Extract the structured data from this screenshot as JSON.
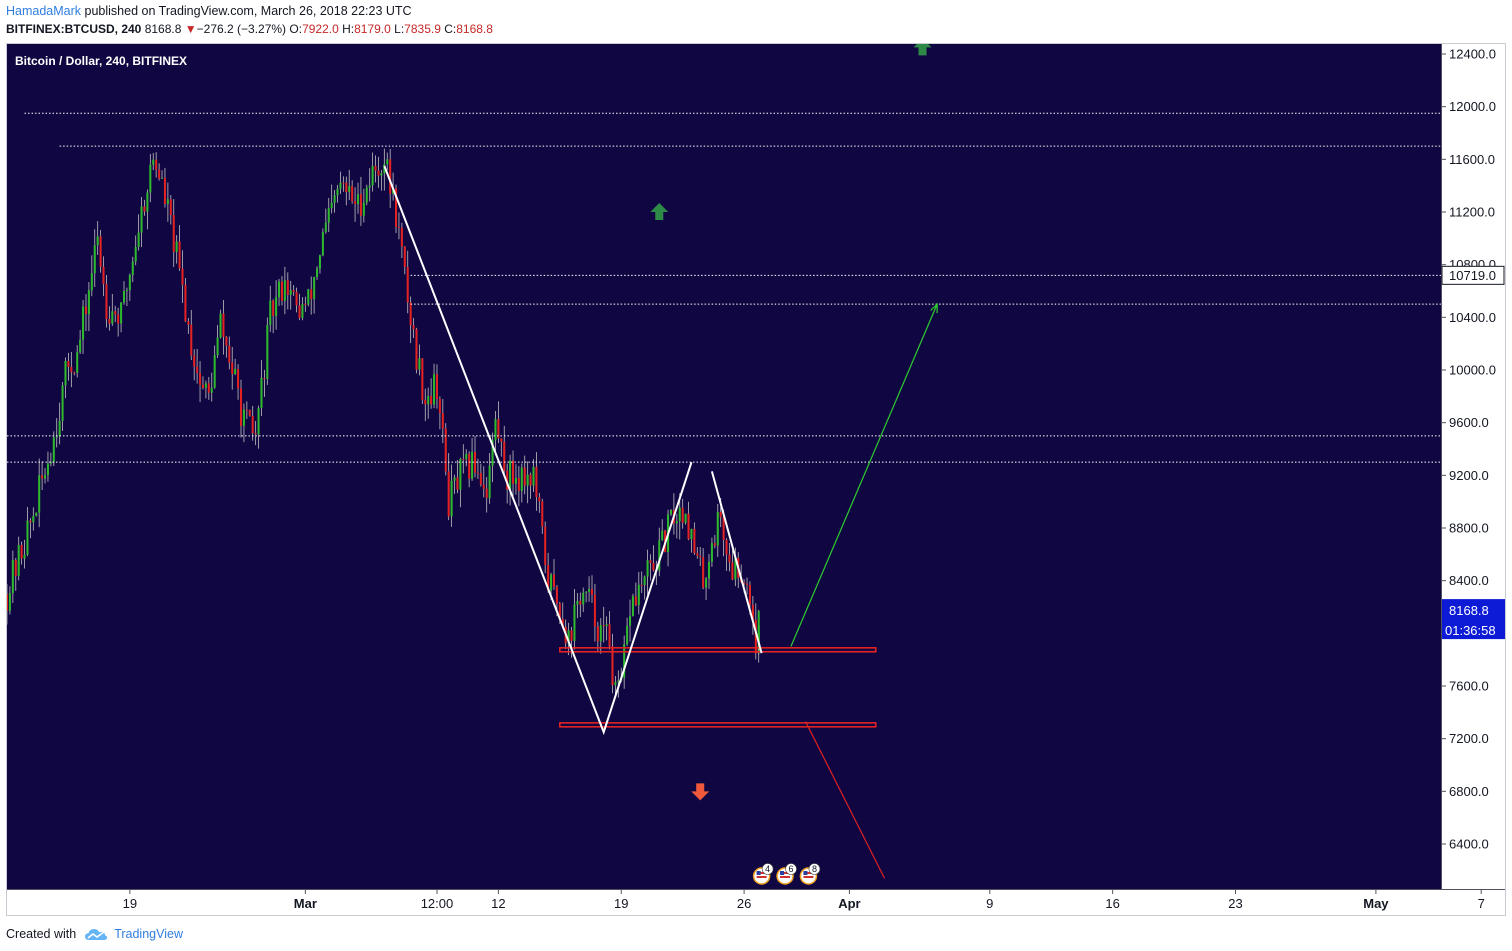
{
  "header": {
    "author": "HamadaMark",
    "published_text": "published on TradingView.com, March 26, 2018 22:23 UTC",
    "symbol": "BITFINEX:BTCUSD, 240",
    "last": "8168.8",
    "change": "−276.2 (−3.27%)",
    "o_label": "O:",
    "o": "7922.0",
    "h_label": "H:",
    "h": "8179.0",
    "l_label": "L:",
    "l": "7835.9",
    "c_label": "C:",
    "c": "8168.8"
  },
  "footer": {
    "created_with": "Created with",
    "brand": "TradingView"
  },
  "colors": {
    "chart_bg": "#100742",
    "up": "#2eb82e",
    "down": "#e32222",
    "wick": "#c0c0c0",
    "trend": "#ffffff",
    "up_arrow": "#2e8b47",
    "down_arrow": "#f0583b",
    "price_badge": "#0d1bd6"
  },
  "chart_data": {
    "type": "candlestick",
    "title": "Bitcoin / Dollar, 240, BITFINEX",
    "ylim": [
      6100,
      12500
    ],
    "y_ticks": [
      "12400.0",
      "12000.0",
      "11600.0",
      "11200.0",
      "10800.0",
      "10400.0",
      "10000.0",
      "9600.0",
      "9200.0",
      "8800.0",
      "8400.0",
      "7600.0",
      "7200.0",
      "6800.0",
      "6400.0"
    ],
    "y_tick_values": [
      12400,
      12000,
      11600,
      11200,
      10800,
      10400,
      10000,
      9600,
      9200,
      8800,
      8400,
      7600,
      7200,
      6800,
      6400
    ],
    "x_ticks": [
      {
        "label": "19",
        "date": "2018-02-19",
        "bold": false
      },
      {
        "label": "Mar",
        "date": "2018-03-01",
        "bold": true
      },
      {
        "label": "12:00",
        "date": "2018-03-08T12:00",
        "bold": false
      },
      {
        "label": "12",
        "date": "2018-03-12",
        "bold": false
      },
      {
        "label": "19",
        "date": "2018-03-19",
        "bold": false
      },
      {
        "label": "26",
        "date": "2018-03-26",
        "bold": false
      },
      {
        "label": "Apr",
        "date": "2018-04-01",
        "bold": true
      },
      {
        "label": "9",
        "date": "2018-04-09",
        "bold": false
      },
      {
        "label": "16",
        "date": "2018-04-16",
        "bold": false
      },
      {
        "label": "23",
        "date": "2018-04-23",
        "bold": false
      },
      {
        "label": "May",
        "date": "2018-05-01",
        "bold": true
      },
      {
        "label": "7",
        "date": "2018-05-07",
        "bold": false
      }
    ],
    "badges": {
      "marked_level": "10719.0",
      "marked_value": 10719,
      "last_price": "8168.8",
      "last_value": 8168.8,
      "countdown": "01:36:58"
    },
    "close_path": [
      [
        "2018-02-12T00:00",
        8300
      ],
      [
        "2018-02-13T12:00",
        8900
      ],
      [
        "2018-02-14T16:00",
        9500
      ],
      [
        "2018-02-15T12:00",
        10050
      ],
      [
        "2018-02-16T00:00",
        10100
      ],
      [
        "2018-02-17T04:00",
        11000
      ],
      [
        "2018-02-17T16:00",
        10500
      ],
      [
        "2018-02-18T12:00",
        10400
      ],
      [
        "2018-02-19T12:00",
        11100
      ],
      [
        "2018-02-20T08:00",
        11600
      ],
      [
        "2018-02-20T16:00",
        11500
      ],
      [
        "2018-02-21T08:00",
        11100
      ],
      [
        "2018-02-22T00:00",
        10600
      ],
      [
        "2018-02-22T12:00",
        10200
      ],
      [
        "2018-02-23T00:00",
        9900
      ],
      [
        "2018-02-23T12:00",
        9800
      ],
      [
        "2018-02-24T04:00",
        10350
      ],
      [
        "2018-02-24T20:00",
        10000
      ],
      [
        "2018-02-25T12:00",
        9600
      ],
      [
        "2018-02-26T04:00",
        9500
      ],
      [
        "2018-02-27T00:00",
        10400
      ],
      [
        "2018-02-27T20:00",
        10700
      ],
      [
        "2018-02-28T12:00",
        10450
      ],
      [
        "2018-03-01T04:00",
        10500
      ],
      [
        "2018-03-02T00:00",
        11000
      ],
      [
        "2018-03-03T00:00",
        11400
      ],
      [
        "2018-03-04T00:00",
        11250
      ],
      [
        "2018-03-04T20:00",
        11500
      ],
      [
        "2018-03-05T12:00",
        11600
      ],
      [
        "2018-03-06T04:00",
        11200
      ],
      [
        "2018-03-06T16:00",
        10700
      ],
      [
        "2018-03-07T08:00",
        10100
      ],
      [
        "2018-03-07T20:00",
        9800
      ],
      [
        "2018-03-08T12:00",
        9900
      ],
      [
        "2018-03-09T04:00",
        9000
      ],
      [
        "2018-03-09T20:00",
        9200
      ],
      [
        "2018-03-10T16:00",
        9300
      ],
      [
        "2018-03-11T08:00",
        9100
      ],
      [
        "2018-03-11T20:00",
        9600
      ],
      [
        "2018-03-12T12:00",
        9200
      ],
      [
        "2018-03-13T04:00",
        9200
      ],
      [
        "2018-03-14T00:00",
        9200
      ],
      [
        "2018-03-14T20:00",
        8400
      ],
      [
        "2018-03-15T12:00",
        8200
      ],
      [
        "2018-03-16T00:00",
        7950
      ],
      [
        "2018-03-16T16:00",
        8300
      ],
      [
        "2018-03-17T04:00",
        8250
      ],
      [
        "2018-03-17T20:00",
        8000
      ],
      [
        "2018-03-18T08:00",
        7950
      ],
      [
        "2018-03-18T16:00",
        7500
      ],
      [
        "2018-03-19T00:00",
        7600
      ],
      [
        "2018-03-19T12:00",
        8200
      ],
      [
        "2018-03-20T08:00",
        8400
      ],
      [
        "2018-03-21T04:00",
        8600
      ],
      [
        "2018-03-22T00:00",
        8900
      ],
      [
        "2018-03-22T16:00",
        8950
      ],
      [
        "2018-03-23T04:00",
        8600
      ],
      [
        "2018-03-23T16:00",
        8400
      ],
      [
        "2018-03-24T04:00",
        8700
      ],
      [
        "2018-03-24T16:00",
        8900
      ],
      [
        "2018-03-25T04:00",
        8500
      ],
      [
        "2018-03-25T20:00",
        8500
      ],
      [
        "2018-03-26T08:00",
        8300
      ],
      [
        "2018-03-26T16:00",
        7922
      ],
      [
        "2018-03-26T20:00",
        8168.8
      ]
    ],
    "horizontal_lines": [
      {
        "y": 11950,
        "from": "2018-02-13T00:00",
        "style": "dotted",
        "color": "#ffffff"
      },
      {
        "y": 11700,
        "from": "2018-02-15T00:00",
        "style": "dotted",
        "color": "#ffffff"
      },
      {
        "y": 10719,
        "from": "2018-03-07T00:00",
        "style": "dotted",
        "color": "#ffffff"
      },
      {
        "y": 10500,
        "from": "2018-03-07T00:00",
        "style": "dotted",
        "color": "#ffffff"
      },
      {
        "y": 9500,
        "from": "2018-02-12T00:00",
        "style": "dotted",
        "color": "#ffffff"
      },
      {
        "y": 9300,
        "from": "2018-02-12T00:00",
        "style": "dotted",
        "color": "#ffffff"
      }
    ],
    "zones": [
      {
        "y_top": 7890,
        "y_bottom": 7860,
        "from": "2018-03-15T12:00",
        "to": "2018-04-02T12:00",
        "color": "#e32222"
      },
      {
        "y_top": 7320,
        "y_bottom": 7290,
        "from": "2018-03-15T12:00",
        "to": "2018-04-02T12:00",
        "color": "#e32222"
      }
    ],
    "trend_lines": [
      {
        "points": [
          [
            "2018-03-05T12:00",
            11550
          ],
          [
            "2018-03-18T00:00",
            7250
          ],
          [
            "2018-03-23T00:00",
            9300
          ]
        ],
        "color": "#ffffff"
      },
      {
        "points": [
          [
            "2018-03-24T04:00",
            9230
          ],
          [
            "2018-03-27T00:00",
            7850
          ]
        ],
        "color": "#ffffff"
      }
    ],
    "projection_lines": [
      {
        "from": [
          "2018-03-28T16:00",
          7900
        ],
        "to": [
          "2018-04-06T00:00",
          10500
        ],
        "color": "#2ecc2e",
        "arrow": true
      },
      {
        "from": [
          "2018-03-29T12:00",
          7330
        ],
        "to": [
          "2018-04-03T00:00",
          6140
        ],
        "color": "#e02020",
        "arrow": false
      }
    ],
    "arrow_markers": [
      {
        "dir": "up",
        "date": "2018-03-21T04:00",
        "y": 11200
      },
      {
        "dir": "up",
        "date": "2018-04-05T04:00",
        "y": 12450
      },
      {
        "dir": "down",
        "date": "2018-03-23T12:00",
        "y": 6800
      }
    ],
    "event_markers": [
      {
        "date": "2018-03-27T00:00",
        "label": "4"
      },
      {
        "date": "2018-03-28T08:00",
        "label": "6"
      },
      {
        "date": "2018-03-29T16:00",
        "label": "8"
      }
    ],
    "last_candle": {
      "date": "2018-03-26T20:00",
      "o": 7922.0,
      "h": 8179.0,
      "l": 7835.9,
      "c": 8168.8
    }
  }
}
